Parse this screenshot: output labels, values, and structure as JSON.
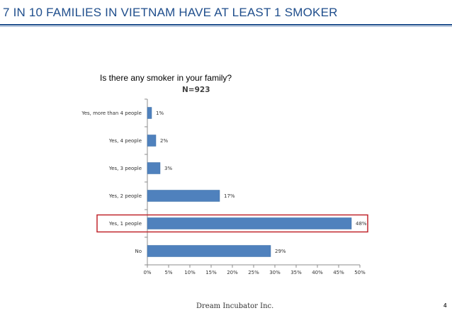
{
  "slide": {
    "title": "7 IN 10 FAMILIES IN VIETNAM HAVE AT LEAST 1 SMOKER",
    "footer": "Dream Incubator Inc.",
    "page_number": "4",
    "title_color": "#1f4e8c"
  },
  "chart_data": {
    "type": "bar",
    "orientation": "horizontal",
    "title": "Is there any smoker in your family?",
    "subtitle": "N=923",
    "categories": [
      "Yes, more than 4 people",
      "Yes, 4 people",
      "Yes, 3 people",
      "Yes, 2 people",
      "Yes, 1 people",
      "No"
    ],
    "values": [
      1,
      2,
      3,
      17,
      48,
      29
    ],
    "value_labels": [
      "1%",
      "2%",
      "3%",
      "17%",
      "48%",
      "29%"
    ],
    "x_ticks": [
      "0%",
      "5%",
      "10%",
      "15%",
      "20%",
      "25%",
      "30%",
      "35%",
      "40%",
      "45%",
      "50%"
    ],
    "xlim": [
      0,
      50
    ],
    "grid": false,
    "legend": "none",
    "highlighted_category": "Yes, 1 people",
    "bar_color": "#4f81bd",
    "highlight_color": "#c0262d"
  }
}
